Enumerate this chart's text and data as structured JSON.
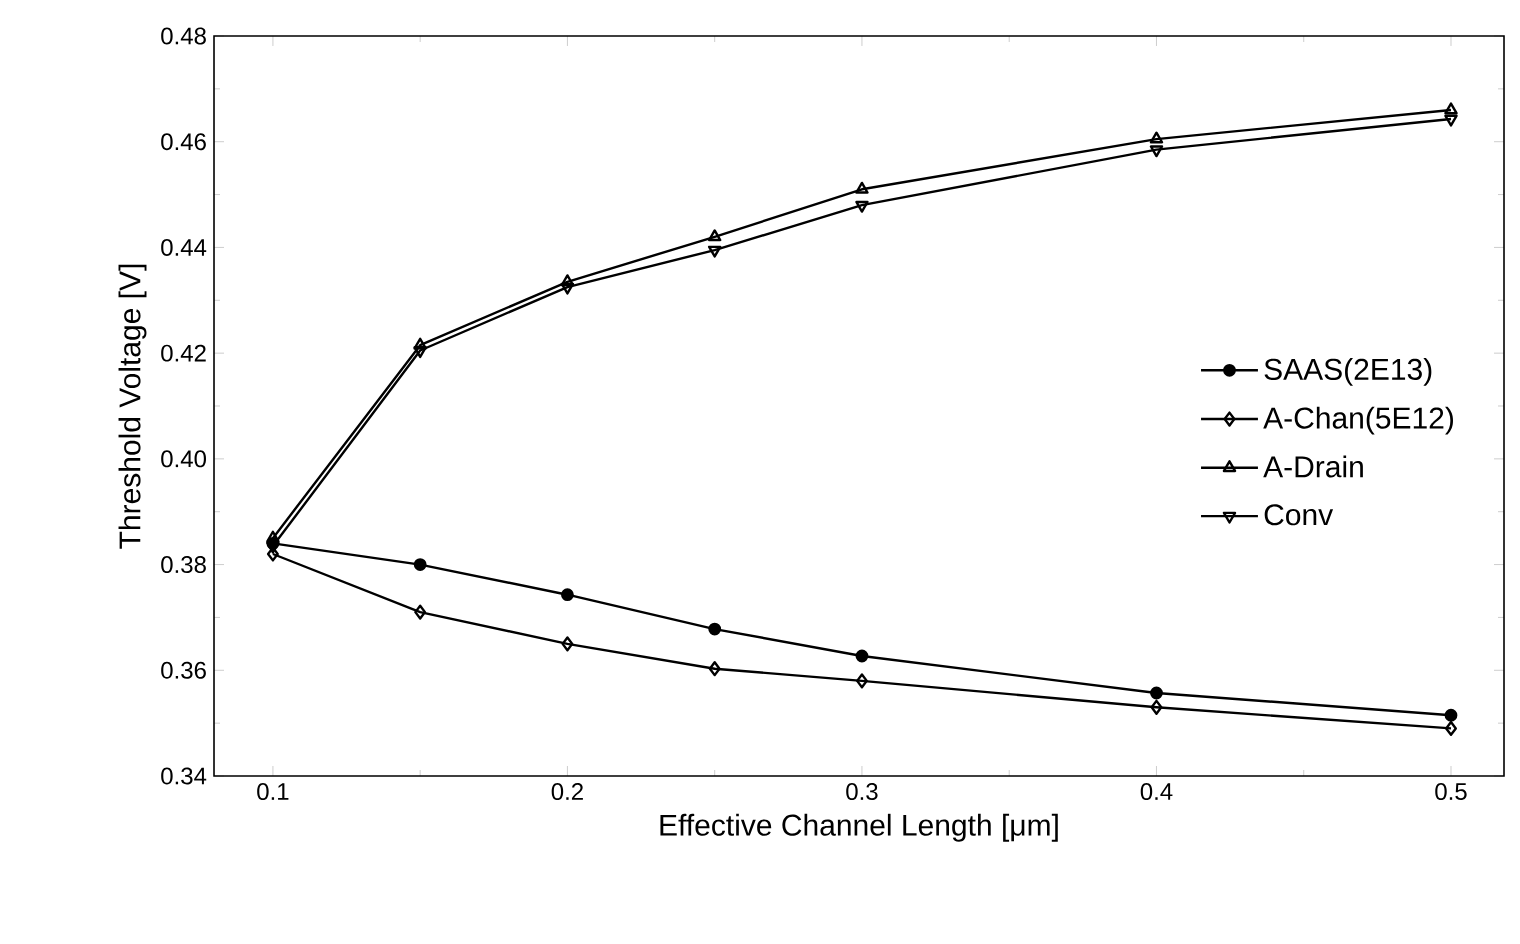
{
  "chart_data": {
    "type": "line",
    "xlabel": "Effective Channel Length [μm]",
    "ylabel": "Threshold Voltage [V]",
    "x": [
      0.1,
      0.15,
      0.2,
      0.25,
      0.3,
      0.4,
      0.5
    ],
    "series": [
      {
        "name": "SAAS(2E13)",
        "color": "#000000",
        "marker": "circle",
        "values": [
          0.384,
          0.38,
          0.3743,
          0.3678,
          0.3627,
          0.3557,
          0.3515
        ]
      },
      {
        "name": "A-Chan(5E12)",
        "color": "#000000",
        "marker": "diamond",
        "values": [
          0.382,
          0.371,
          0.365,
          0.3603,
          0.358,
          0.353,
          0.349
        ]
      },
      {
        "name": "A-Drain",
        "color": "#000000",
        "marker": "triangle",
        "values": [
          0.385,
          0.4215,
          0.4335,
          0.442,
          0.451,
          0.4605,
          0.466
        ]
      },
      {
        "name": "Conv",
        "color": "#000000",
        "marker": "triangle-down",
        "values": [
          0.3835,
          0.4205,
          0.4325,
          0.4395,
          0.448,
          0.4585,
          0.4643
        ]
      }
    ],
    "xlim": [
      0.08,
      0.518
    ],
    "ylim": [
      0.34,
      0.48
    ],
    "xticks": [
      0.1,
      0.2,
      0.3,
      0.4,
      0.5
    ],
    "yticks": [
      0.34,
      0.36,
      0.38,
      {
        "value": 0.4,
        "label": "0.40"
      },
      0.42,
      0.44,
      0.46,
      0.48
    ],
    "grid": false,
    "legend": "right",
    "line_style": "solid"
  }
}
